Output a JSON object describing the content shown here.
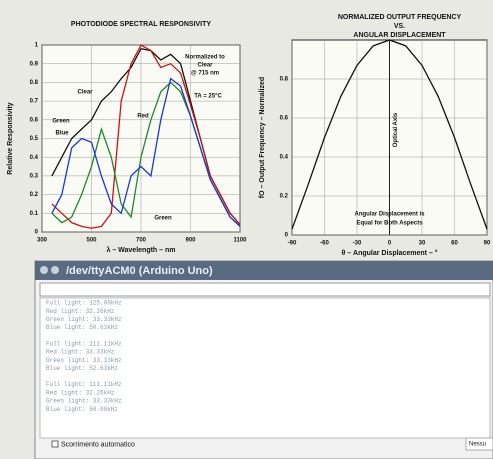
{
  "chart_data": [
    {
      "type": "line",
      "title": "PHOTODIODE SPECTRAL RESPONSIVITY",
      "ylabel": "Relative Responsivity",
      "xlabel": "λ – Wavelength – nm",
      "x": [
        340,
        380,
        420,
        460,
        500,
        540,
        580,
        620,
        660,
        700,
        740,
        780,
        820,
        860,
        900,
        940,
        980,
        1020,
        1060,
        1100
      ],
      "series": [
        {
          "name": "Clear",
          "color": "#111111",
          "values": [
            0.3,
            0.4,
            0.5,
            0.55,
            0.6,
            0.7,
            0.75,
            0.82,
            0.88,
            0.98,
            0.97,
            0.92,
            0.95,
            0.9,
            0.7,
            0.5,
            0.3,
            0.2,
            0.1,
            0.04
          ]
        },
        {
          "name": "Red",
          "color": "#d01010",
          "values": [
            0.15,
            0.1,
            0.05,
            0.03,
            0.02,
            0.03,
            0.1,
            0.7,
            0.9,
            1.0,
            0.97,
            0.88,
            0.9,
            0.85,
            0.68,
            0.5,
            0.3,
            0.2,
            0.1,
            0.04
          ]
        },
        {
          "name": "Green",
          "color": "#1a8a2a",
          "values": [
            0.1,
            0.05,
            0.08,
            0.2,
            0.35,
            0.55,
            0.4,
            0.15,
            0.08,
            0.4,
            0.6,
            0.75,
            0.8,
            0.75,
            0.62,
            0.45,
            0.28,
            0.18,
            0.08,
            0.03
          ]
        },
        {
          "name": "Blue",
          "color": "#1a3ad0",
          "values": [
            0.1,
            0.2,
            0.45,
            0.5,
            0.48,
            0.3,
            0.15,
            0.1,
            0.3,
            0.35,
            0.3,
            0.6,
            0.82,
            0.78,
            0.62,
            0.45,
            0.28,
            0.18,
            0.08,
            0.03
          ]
        }
      ],
      "annotations": [
        "Normalized to",
        "Clear",
        "@ 715 nm",
        "TA = 25°C",
        "Green"
      ],
      "xlim": [
        300,
        1100
      ],
      "xticks": [
        300,
        500,
        700,
        900,
        1100
      ],
      "ylim": [
        0,
        1
      ],
      "yticks": [
        0,
        0.1,
        0.2,
        0.3,
        0.4,
        0.5,
        0.6,
        0.7,
        0.8,
        0.9,
        1
      ],
      "grid": true
    },
    {
      "type": "line",
      "title": "NORMALIZED OUTPUT FREQUENCY",
      "subtitle": "VS.",
      "title2": "ANGULAR DISPLACEMENT",
      "ylabel": "fO – Output Frequency – Normalized",
      "xlabel": "θ – Angular Displacement – °",
      "x": [
        -90,
        -75,
        -60,
        -45,
        -30,
        -15,
        0,
        15,
        30,
        45,
        60,
        75,
        90
      ],
      "series": [
        {
          "name": null,
          "color": "#111111",
          "values": [
            0.03,
            0.26,
            0.5,
            0.71,
            0.87,
            0.97,
            1,
            0.97,
            0.87,
            0.71,
            0.5,
            0.26,
            0.03
          ]
        }
      ],
      "annotations": [
        "Optical Axis",
        "Angular Displacement is",
        "Equal for Both Aspects"
      ],
      "xlim": [
        -90,
        90
      ],
      "xticks": [
        -90,
        -60,
        -30,
        0,
        30,
        60,
        90
      ],
      "ylim": [
        0,
        1
      ],
      "yticks": [
        0,
        0.2,
        0.4,
        0.6,
        0.8
      ],
      "grid": true
    }
  ],
  "serial": {
    "title": "/dev/ttyACM0 (Arduino Uno)",
    "lines": [
      "Full light: 125.00kHz",
      "Red light: 32.26kHz",
      "Green light: 33.33kHz",
      "Blue light: 50.63kHz",
      "Full light: 111.11kHz",
      "Red light: 33.33kHz",
      "Green light: 33.33kHz",
      "Blue light: 52.63kHz",
      "Full light: 111.11kHz",
      "Red light: 32.26kHz",
      "Green light: 33.33kHz",
      "Blue light: 50.00kHz"
    ],
    "autoscroll": "Scorrimento automatico",
    "ending": "Nessu"
  }
}
